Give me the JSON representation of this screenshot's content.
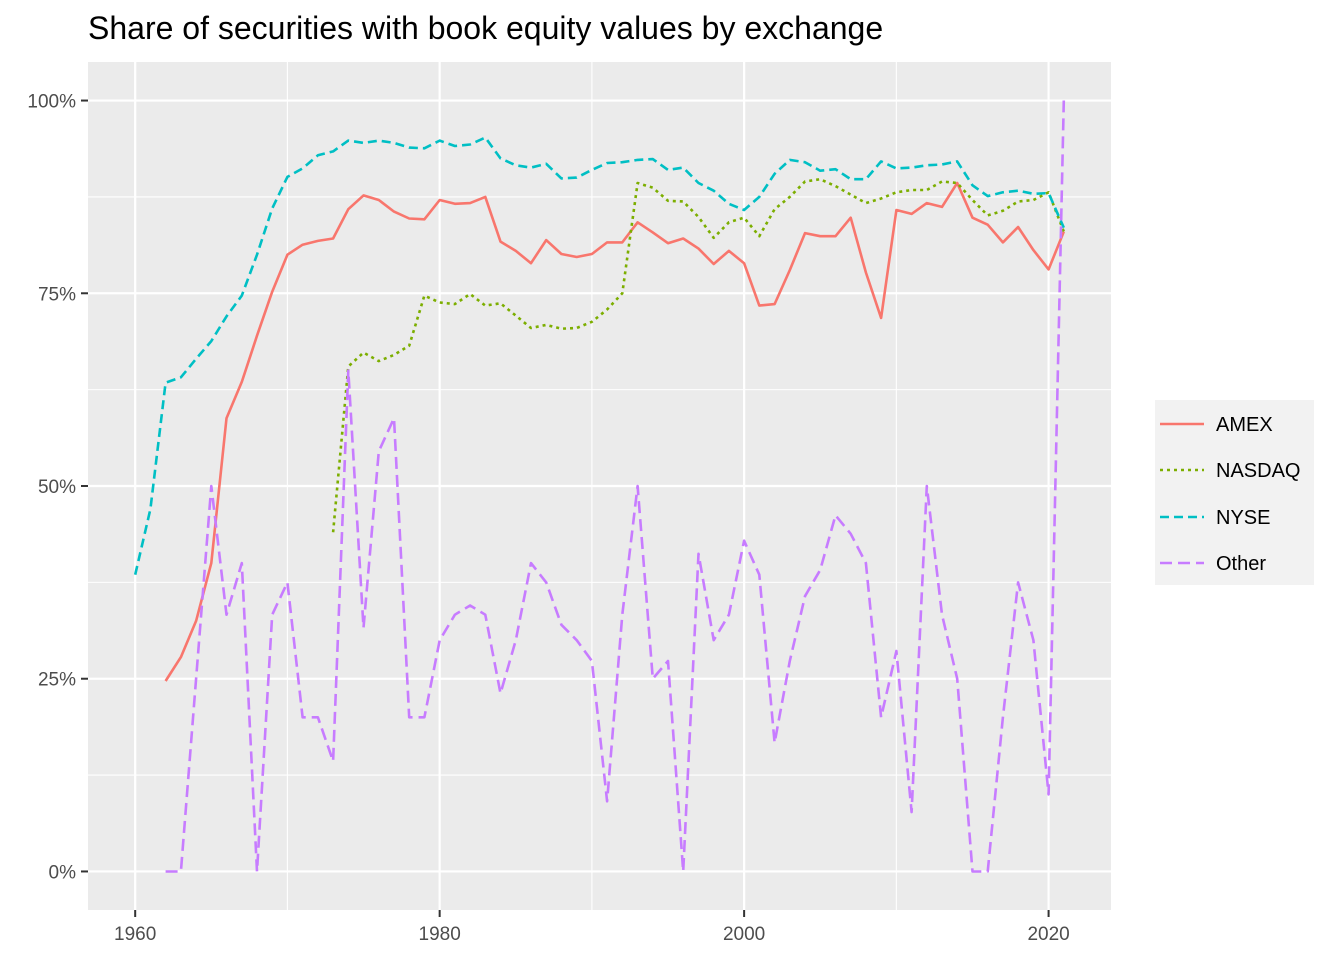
{
  "chart_data": {
    "type": "line",
    "title": "Share of securities with book equity values by exchange",
    "xlabel": "",
    "ylabel": "",
    "xlim": [
      1956.9,
      2024.1
    ],
    "ylim": [
      -0.05,
      1.05
    ],
    "x_ticks": [
      1960,
      1980,
      2000,
      2020
    ],
    "x_tick_labels": [
      "1960",
      "1980",
      "2000",
      "2020"
    ],
    "y_ticks": [
      0,
      0.25,
      0.5,
      0.75,
      1
    ],
    "y_tick_labels": [
      "0%",
      "25%",
      "50%",
      "75%",
      "100%"
    ],
    "grid": true,
    "legend_position": "right",
    "series": [
      {
        "name": "AMEX",
        "color": "#F8766D",
        "dash": "solid",
        "x": [
          1962,
          1963,
          1964,
          1965,
          1966,
          1967,
          1968,
          1969,
          1970,
          1971,
          1972,
          1973,
          1974,
          1975,
          1976,
          1977,
          1978,
          1979,
          1980,
          1981,
          1982,
          1983,
          1984,
          1985,
          1986,
          1987,
          1988,
          1989,
          1990,
          1991,
          1992,
          1993,
          1994,
          1995,
          1996,
          1997,
          1998,
          1999,
          2000,
          2001,
          2002,
          2003,
          2004,
          2005,
          2006,
          2007,
          2008,
          2009,
          2010,
          2011,
          2012,
          2013,
          2014,
          2015,
          2016,
          2017,
          2018,
          2019,
          2020,
          2021
        ],
        "y": [
          0.247,
          0.278,
          0.325,
          0.4,
          0.588,
          0.635,
          0.695,
          0.752,
          0.8,
          0.813,
          0.818,
          0.821,
          0.859,
          0.877,
          0.871,
          0.856,
          0.847,
          0.846,
          0.871,
          0.866,
          0.867,
          0.875,
          0.817,
          0.805,
          0.789,
          0.819,
          0.801,
          0.797,
          0.801,
          0.816,
          0.816,
          0.842,
          0.829,
          0.815,
          0.821,
          0.808,
          0.788,
          0.805,
          0.789,
          0.734,
          0.736,
          0.78,
          0.828,
          0.824,
          0.824,
          0.848,
          0.777,
          0.718,
          0.858,
          0.853,
          0.867,
          0.862,
          0.893,
          0.848,
          0.839,
          0.816,
          0.836,
          0.806,
          0.781,
          0.83
        ]
      },
      {
        "name": "NASDAQ",
        "color": "#7CAE00",
        "dash": "dotted",
        "x": [
          1973,
          1974,
          1975,
          1976,
          1977,
          1978,
          1979,
          1980,
          1981,
          1982,
          1983,
          1984,
          1985,
          1986,
          1987,
          1988,
          1989,
          1990,
          1991,
          1992,
          1993,
          1994,
          1995,
          1996,
          1997,
          1998,
          1999,
          2000,
          2001,
          2002,
          2003,
          2004,
          2005,
          2006,
          2007,
          2008,
          2009,
          2010,
          2011,
          2012,
          2013,
          2014,
          2015,
          2016,
          2017,
          2018,
          2019,
          2020,
          2021
        ],
        "y": [
          0.44,
          0.655,
          0.673,
          0.662,
          0.67,
          0.682,
          0.747,
          0.738,
          0.736,
          0.749,
          0.734,
          0.737,
          0.721,
          0.705,
          0.709,
          0.704,
          0.705,
          0.713,
          0.729,
          0.75,
          0.893,
          0.887,
          0.87,
          0.869,
          0.849,
          0.822,
          0.842,
          0.848,
          0.824,
          0.859,
          0.875,
          0.895,
          0.898,
          0.889,
          0.878,
          0.867,
          0.873,
          0.881,
          0.884,
          0.884,
          0.895,
          0.893,
          0.871,
          0.851,
          0.857,
          0.869,
          0.871,
          0.881,
          0.83
        ]
      },
      {
        "name": "NYSE",
        "color": "#00BFC4",
        "dash": "dashed",
        "x": [
          1960,
          1961,
          1962,
          1963,
          1964,
          1965,
          1966,
          1967,
          1968,
          1969,
          1970,
          1971,
          1972,
          1973,
          1974,
          1975,
          1976,
          1977,
          1978,
          1979,
          1980,
          1981,
          1982,
          1983,
          1984,
          1985,
          1986,
          1987,
          1988,
          1989,
          1990,
          1991,
          1992,
          1993,
          1994,
          1995,
          1996,
          1997,
          1998,
          1999,
          2000,
          2001,
          2002,
          2003,
          2004,
          2005,
          2006,
          2007,
          2008,
          2009,
          2010,
          2011,
          2012,
          2013,
          2014,
          2015,
          2016,
          2017,
          2018,
          2019,
          2020,
          2021
        ],
        "y": [
          0.385,
          0.47,
          0.634,
          0.641,
          0.665,
          0.688,
          0.72,
          0.747,
          0.8,
          0.86,
          0.901,
          0.912,
          0.929,
          0.934,
          0.948,
          0.945,
          0.948,
          0.945,
          0.939,
          0.938,
          0.948,
          0.941,
          0.943,
          0.952,
          0.925,
          0.916,
          0.913,
          0.918,
          0.899,
          0.9,
          0.91,
          0.919,
          0.92,
          0.923,
          0.924,
          0.91,
          0.913,
          0.893,
          0.883,
          0.866,
          0.858,
          0.875,
          0.905,
          0.923,
          0.92,
          0.909,
          0.911,
          0.898,
          0.898,
          0.921,
          0.912,
          0.913,
          0.916,
          0.917,
          0.921,
          0.89,
          0.876,
          0.881,
          0.883,
          0.879,
          0.88,
          0.835
        ]
      },
      {
        "name": "Other",
        "color": "#C77CFF",
        "dash": "longdash",
        "x": [
          1962,
          1963,
          1964,
          1965,
          1966,
          1967,
          1968,
          1969,
          1970,
          1971,
          1972,
          1973,
          1974,
          1975,
          1976,
          1977,
          1978,
          1979,
          1980,
          1981,
          1982,
          1983,
          1984,
          1985,
          1986,
          1987,
          1988,
          1989,
          1990,
          1991,
          1992,
          1993,
          1994,
          1995,
          1996,
          1997,
          1998,
          1999,
          2000,
          2001,
          2002,
          2003,
          2004,
          2005,
          2006,
          2007,
          2008,
          2009,
          2010,
          2011,
          2012,
          2013,
          2014,
          2015,
          2016,
          2017,
          2018,
          2019,
          2020,
          2021
        ],
        "y": [
          0.0,
          0.0,
          0.25,
          0.5,
          0.333,
          0.4,
          0.0,
          0.333,
          0.375,
          0.2,
          0.2,
          0.143,
          0.65,
          0.316,
          0.545,
          0.588,
          0.2,
          0.2,
          0.3,
          0.333,
          0.345,
          0.333,
          0.231,
          0.3,
          0.4,
          0.375,
          0.32,
          0.3,
          0.273,
          0.091,
          0.333,
          0.5,
          0.25,
          0.273,
          0.0,
          0.412,
          0.3,
          0.333,
          0.429,
          0.385,
          0.167,
          0.273,
          0.357,
          0.391,
          0.462,
          0.438,
          0.4,
          0.2,
          0.286,
          0.077,
          0.5,
          0.333,
          0.25,
          0.0,
          0.0,
          0.2,
          0.375,
          0.3,
          0.1,
          1.0
        ]
      }
    ]
  }
}
